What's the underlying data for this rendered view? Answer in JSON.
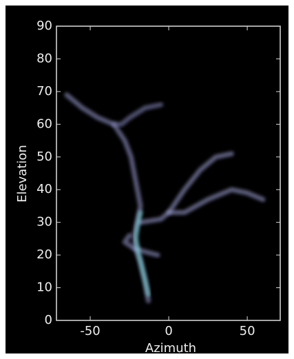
{
  "chart_data": {
    "type": "line",
    "xlabel": "Azimuth",
    "ylabel": "Elevation",
    "xlim": [
      -71.5,
      71
    ],
    "ylim": [
      0,
      90
    ],
    "xticks": [
      -50,
      0,
      50
    ],
    "yticks": [
      0,
      10,
      20,
      30,
      40,
      50,
      60,
      70,
      80,
      90
    ],
    "series": [
      {
        "color": "#9ea0d8",
        "x": [
          -13,
          -15,
          -18,
          -21,
          -22,
          -20,
          -18,
          -20,
          -22,
          -24,
          -28,
          -35,
          -45,
          -55,
          -65
        ],
        "values": [
          6,
          12,
          18,
          22,
          26,
          30,
          35,
          40,
          45,
          50,
          55,
          60,
          62,
          65,
          69
        ]
      },
      {
        "color": "#8a8cc4",
        "x": [
          -35,
          -30,
          -25,
          -15,
          -5
        ],
        "values": [
          60,
          60,
          62,
          65,
          66
        ]
      },
      {
        "color": "#a4a6dc",
        "x": [
          -18,
          -5,
          0,
          10,
          20,
          30,
          40
        ],
        "values": [
          30,
          31,
          33,
          40,
          46,
          50,
          51
        ]
      },
      {
        "color": "#a4a6dc",
        "x": [
          0,
          10,
          25,
          40,
          50,
          60
        ],
        "values": [
          33,
          33,
          37,
          40,
          39,
          37
        ]
      },
      {
        "color": "#9ea0d8",
        "x": [
          -25,
          -28,
          -22,
          -15,
          -7
        ],
        "values": [
          26,
          24,
          22,
          21,
          20
        ]
      },
      {
        "color": "#7fe0e0",
        "x": [
          -13,
          -16,
          -19,
          -21,
          -20,
          -18
        ],
        "values": [
          8,
          14,
          20,
          25,
          29,
          33
        ]
      }
    ]
  }
}
